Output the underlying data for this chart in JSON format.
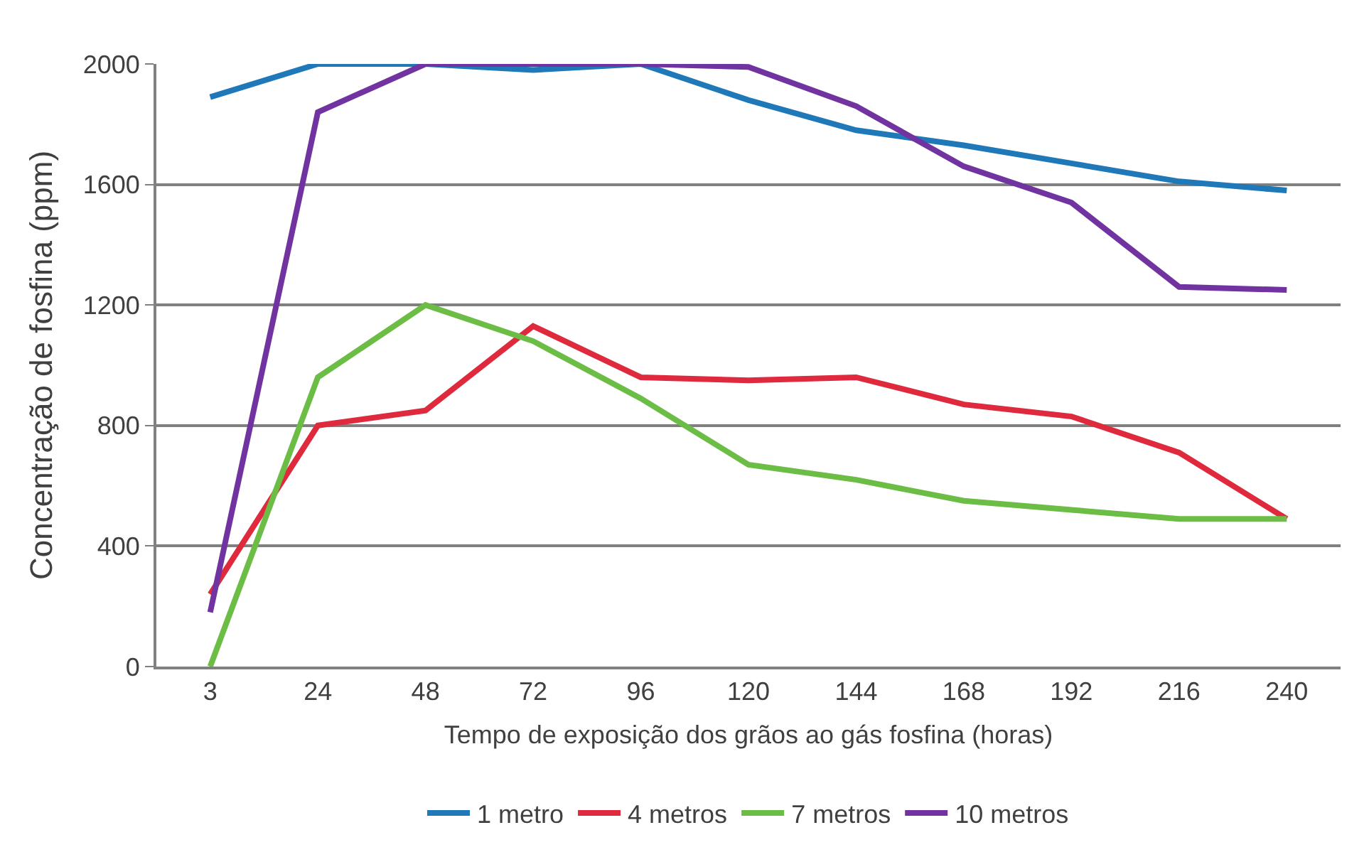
{
  "chart_data": {
    "type": "line",
    "xlabel": "Tempo de exposição dos grãos ao gás fosfina (horas)",
    "ylabel": "Concentração de fosfina (ppm)",
    "categories": [
      "3",
      "24",
      "48",
      "72",
      "96",
      "120",
      "144",
      "168",
      "192",
      "216",
      "240"
    ],
    "series": [
      {
        "name": "1 metro",
        "color": "#1f78b8",
        "values": [
          1890,
          2000,
          2000,
          1980,
          2000,
          1880,
          1780,
          1730,
          1670,
          1610,
          1580
        ]
      },
      {
        "name": "4 metros",
        "color": "#de2a3c",
        "values": [
          240,
          800,
          850,
          1130,
          960,
          950,
          960,
          870,
          830,
          710,
          490
        ]
      },
      {
        "name": "7 metros",
        "color": "#6cbd45",
        "values": [
          0,
          960,
          1200,
          1080,
          890,
          670,
          620,
          550,
          520,
          490,
          490
        ]
      },
      {
        "name": "10 metros",
        "color": "#7133a0",
        "values": [
          180,
          1840,
          2000,
          2000,
          2000,
          1990,
          1860,
          1660,
          1540,
          1260,
          1250
        ]
      }
    ],
    "ylim": [
      0,
      2000
    ],
    "yticks": [
      0,
      400,
      800,
      1200,
      1600,
      2000
    ],
    "grid": "y",
    "legend": "bottom",
    "marker": "none",
    "line_style": "solid"
  }
}
